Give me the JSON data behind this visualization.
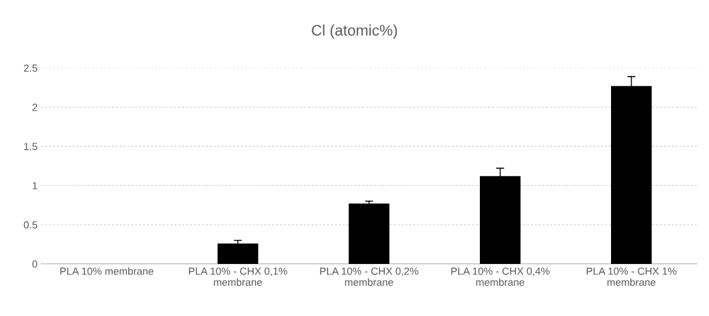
{
  "chart_data": {
    "type": "bar",
    "title": "Cl (atomic%)",
    "categories": [
      "PLA 10% membrane",
      "PLA 10% - CHX 0,1%\nmembrane",
      "PLA 10% - CHX 0,2%\nmembrane",
      "PLA 10% - CHX 0,4%\nmembrane",
      "PLA 10% - CHX 1%\nmembrane"
    ],
    "values": [
      0,
      0.26,
      0.77,
      1.12,
      2.27
    ],
    "errors": [
      null,
      0.04,
      0.03,
      0.1,
      0.12
    ],
    "color": "#000000",
    "ylim": [
      0,
      2.5
    ],
    "yticks": [
      0,
      0.5,
      1,
      1.5,
      2,
      2.5
    ],
    "grid": "y"
  }
}
